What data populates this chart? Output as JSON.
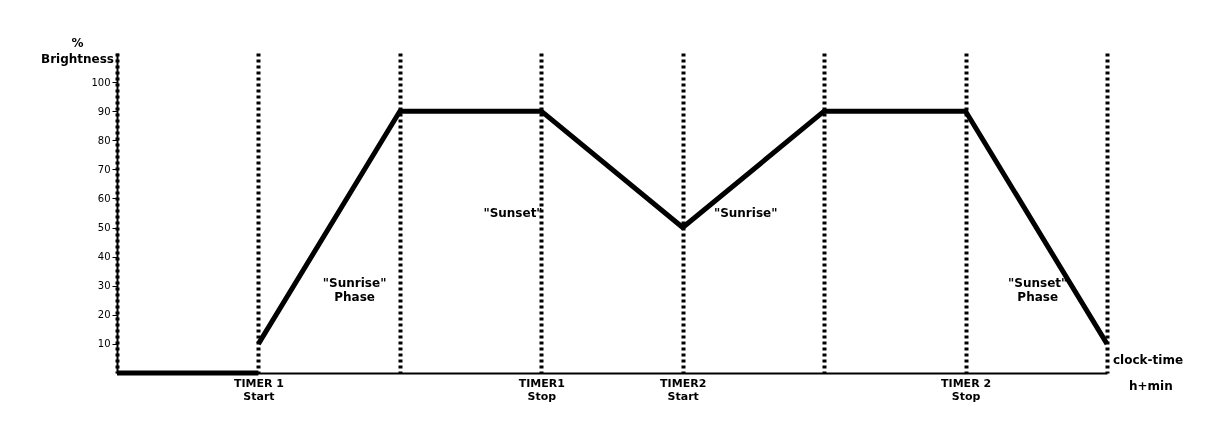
{
  "chart_data": {
    "type": "line",
    "ylabel": "% Brightness",
    "xlabel": "clock-time h+min",
    "categories": [
      null,
      "TIMER 1 Start",
      null,
      "TIMER1 Stop",
      "TIMER2 Start",
      null,
      "TIMER 2 Stop",
      null
    ],
    "series": [
      {
        "color": "#000000",
        "values": [
          0,
          0,
          null,
          null,
          null,
          null,
          null,
          null
        ]
      },
      {
        "color": "#000000",
        "values": [
          null,
          10,
          90,
          90,
          50,
          90,
          90,
          10
        ]
      }
    ],
    "ylim": [
      0,
      110
    ],
    "yticks": [
      10,
      20,
      30,
      40,
      50,
      60,
      70,
      80,
      90,
      100
    ],
    "grid": "x",
    "annotations": [
      "\"Sunrise\" Phase",
      "\"Sunset\"",
      "\"Sunrise\"",
      "\"Sunset\" Phase"
    ]
  }
}
